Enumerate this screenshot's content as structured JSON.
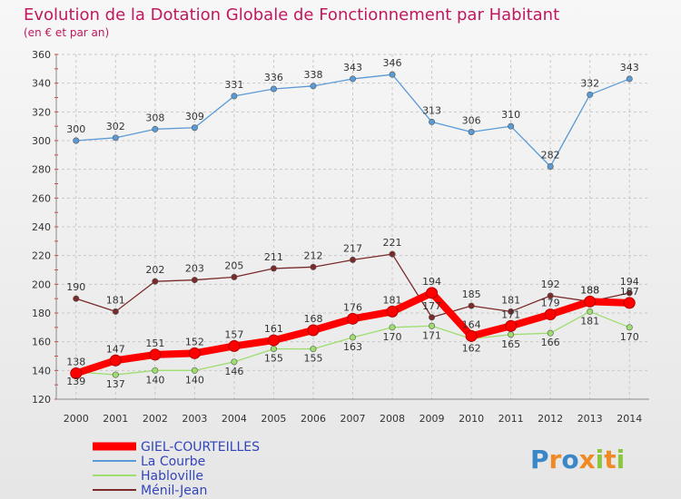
{
  "chart_data": {
    "type": "line",
    "title": "Evolution de la Dotation Globale de Fonctionnement par Habitant",
    "subtitle": "(en € et par an)",
    "x": [
      "2000",
      "2001",
      "2002",
      "2003",
      "2004",
      "2005",
      "2006",
      "2007",
      "2008",
      "2009",
      "2010",
      "2011",
      "2012",
      "2013",
      "2014"
    ],
    "ylim": [
      120,
      360
    ],
    "yticks": [
      120,
      140,
      160,
      180,
      200,
      220,
      240,
      260,
      280,
      300,
      320,
      340,
      360
    ],
    "grid": true,
    "legend_position": "bottom-left",
    "series": [
      {
        "name": "GIEL-COURTEILLES",
        "color": "#ff0000",
        "values": [
          138,
          147,
          151,
          152,
          157,
          161,
          168,
          176,
          181,
          194,
          164,
          171,
          179,
          188,
          187
        ],
        "labels_shown": true
      },
      {
        "name": "La Courbe",
        "color": "#5b9bd5",
        "values": [
          300,
          302,
          308,
          309,
          331,
          336,
          338,
          343,
          346,
          313,
          306,
          310,
          282,
          332,
          343
        ],
        "labels_shown": true
      },
      {
        "name": "Habloville",
        "color": "#9dde6e",
        "values": [
          139,
          137,
          140,
          140,
          146,
          155,
          155,
          163,
          170,
          171,
          162,
          165,
          166,
          181,
          170
        ],
        "labels_shown": true
      },
      {
        "name": "Ménil-Jean",
        "color": "#7a2a2a",
        "values": [
          190,
          181,
          202,
          203,
          205,
          211,
          212,
          217,
          221,
          177,
          185,
          181,
          192,
          188,
          194
        ],
        "labels_shown": true
      }
    ]
  },
  "logo": {
    "text": "Proxiti"
  }
}
